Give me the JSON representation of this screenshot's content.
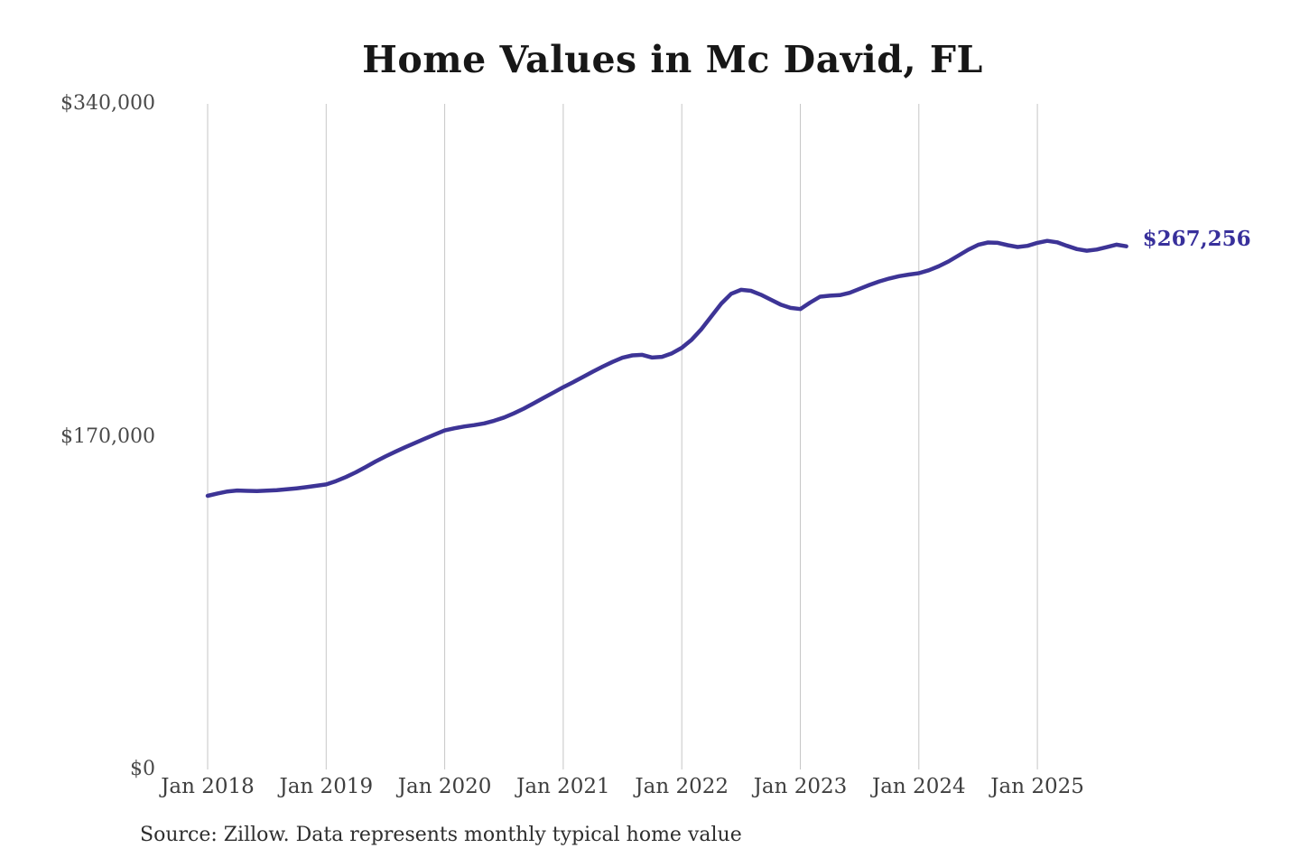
{
  "page": {
    "background": "#ffffff"
  },
  "chart_data": {
    "type": "line",
    "title": "Home Values in Mc David, FL",
    "source_note": "Source: Zillow. Data represents monthly typical home value",
    "series_name": "Monthly typical home value",
    "x_start": "Jan 2018",
    "x_interval": "monthly",
    "x_tick_labels": [
      "Jan 2018",
      "Jan 2019",
      "Jan 2020",
      "Jan 2021",
      "Jan 2022",
      "Jan 2023",
      "Jan 2024",
      "Jan 2025"
    ],
    "y_ticks": [
      {
        "value": 0,
        "label": "$0"
      },
      {
        "value": 170000,
        "label": "$170,000"
      },
      {
        "value": 340000,
        "label": "$340,000"
      }
    ],
    "ylim": [
      0,
      340000
    ],
    "grid": "vertical-only",
    "legend": "none",
    "end_label": "$267,256",
    "latest_value": 267256,
    "line_color": "#3d3496",
    "end_label_color": "#38309b",
    "grid_color": "#c6c6c6",
    "values": [
      139800,
      141000,
      142000,
      142500,
      142300,
      142200,
      142400,
      142700,
      143100,
      143600,
      144200,
      144900,
      145600,
      147300,
      149400,
      151800,
      154500,
      157300,
      159900,
      162300,
      164600,
      166800,
      169000,
      171100,
      173200,
      174300,
      175200,
      175900,
      176800,
      178100,
      179800,
      181900,
      184300,
      187000,
      189800,
      192500,
      195300,
      197800,
      200500,
      203200,
      205800,
      208200,
      210300,
      211500,
      211800,
      210400,
      210800,
      212600,
      215400,
      219500,
      225000,
      231500,
      238000,
      243000,
      245000,
      244500,
      242500,
      240000,
      237500,
      235800,
      235200,
      238500,
      241500,
      242000,
      242300,
      243500,
      245500,
      247500,
      249300,
      250800,
      252000,
      252800,
      253500,
      255000,
      257000,
      259500,
      262500,
      265500,
      268000,
      269200,
      269000,
      267800,
      266900,
      267500,
      269000,
      270000,
      269300,
      267500,
      265800,
      265000,
      265600,
      266800,
      268100,
      267256
    ]
  }
}
